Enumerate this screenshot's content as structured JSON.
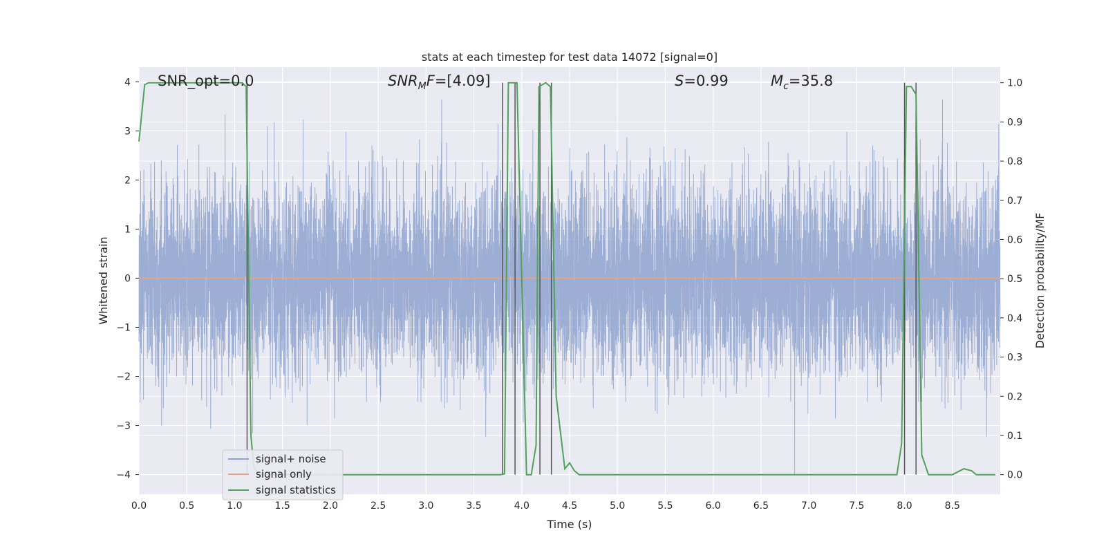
{
  "chart_data": {
    "type": "line",
    "title": "stats at each timestep for test data 14072 [signal=0]",
    "xlabel": "Time (s)",
    "ylabel": "Whitened strain",
    "y2label": "Detection probability/MF",
    "xlim": [
      0,
      9.0
    ],
    "ylim": [
      -4.4,
      4.3
    ],
    "y2lim": [
      -0.05,
      1.04
    ],
    "x_ticks": [
      "0.0",
      "0.5",
      "1.0",
      "1.5",
      "2.0",
      "2.5",
      "3.0",
      "3.5",
      "4.0",
      "4.5",
      "5.0",
      "5.5",
      "6.0",
      "6.5",
      "7.0",
      "7.5",
      "8.0",
      "8.5"
    ],
    "y_ticks": [
      "4",
      "3",
      "2",
      "1",
      "0",
      "−1",
      "−2",
      "−3",
      "−4"
    ],
    "y2_ticks": [
      "1.0",
      "0.9",
      "0.8",
      "0.7",
      "0.6",
      "0.5",
      "0.4",
      "0.3",
      "0.2",
      "0.1",
      "0.0"
    ],
    "grid": true,
    "legend_position": "lower-left",
    "annotations": {
      "snr_opt": "SNR_opt=0.0",
      "snr_mf": "=[4.09]",
      "snr_mf_label": "SNR",
      "snr_mf_sub": "M",
      "snr_mf_tail": "F",
      "stat": "=0.99",
      "stat_label": "S",
      "mchirp": "=35.8",
      "mchirp_label": "M",
      "mchirp_sub": "c"
    },
    "series": [
      {
        "name": "signal+ noise",
        "color": "#8fa3cf",
        "description_values": "whitened noise, approx gaussian, std ~1, range ~[-4,3.8]"
      },
      {
        "name": "signal only",
        "color": "#e5a58a",
        "values_constant": 0
      },
      {
        "name": "signal statistics",
        "color": "#4ea259",
        "x": [
          0.0,
          0.06,
          0.1,
          0.15,
          0.5,
          1.0,
          1.08,
          1.12,
          1.17,
          1.2,
          1.25,
          1.3,
          2.0,
          3.0,
          3.78,
          3.82,
          3.86,
          3.9,
          3.95,
          4.05,
          4.1,
          4.15,
          4.18,
          4.25,
          4.3,
          4.36,
          4.45,
          4.5,
          4.55,
          4.6,
          4.8,
          6.0,
          7.0,
          7.92,
          7.97,
          8.02,
          8.07,
          8.12,
          8.18,
          8.25,
          8.5,
          8.62,
          8.7,
          8.75,
          8.95
        ],
        "values": [
          0.85,
          0.995,
          1.0,
          1.0,
          1.0,
          1.0,
          1.0,
          0.99,
          0.1,
          0.02,
          0.0,
          0.0,
          0.0,
          0.0,
          0.0,
          0.002,
          1.0,
          1.0,
          1.0,
          0.0,
          0.0,
          0.075,
          0.99,
          1.0,
          0.99,
          0.2,
          0.015,
          0.03,
          0.01,
          0.0,
          0.0,
          0.0,
          0.0,
          0.0,
          0.08,
          0.99,
          0.99,
          0.97,
          0.05,
          0.0,
          0.0,
          0.015,
          0.01,
          0.0,
          0.0
        ]
      },
      {
        "name": "vertical markers",
        "color": "#555555",
        "x": [
          1.13,
          3.8,
          3.93,
          4.19,
          4.31,
          8.0,
          8.12
        ]
      }
    ]
  }
}
